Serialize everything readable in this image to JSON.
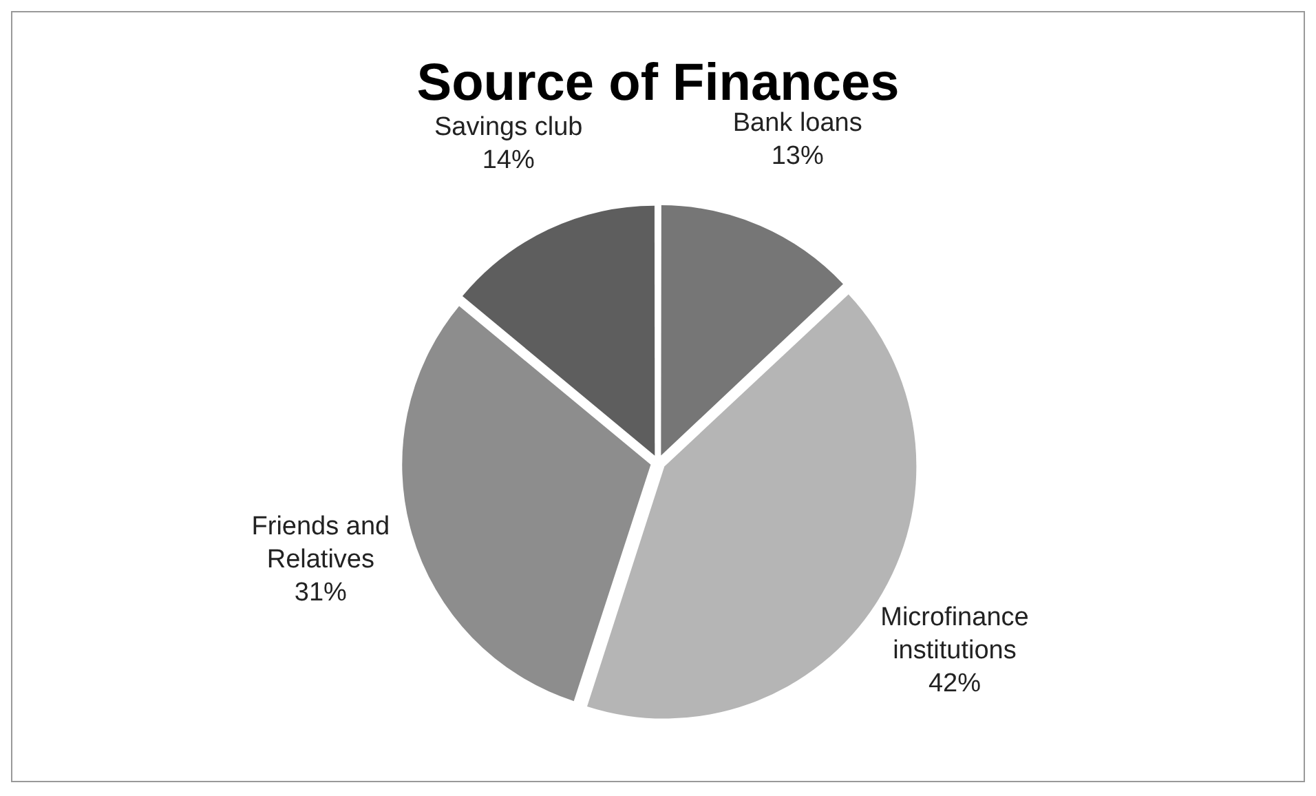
{
  "chart_data": {
    "type": "pie",
    "title": "Source of Finances",
    "categories": [
      "Bank loans",
      "Microfinance institutions",
      "Friends and Relatives",
      "Savings club"
    ],
    "values": [
      13,
      42,
      31,
      14
    ],
    "value_labels": [
      "13%",
      "42%",
      "31%",
      "14%"
    ],
    "colors": [
      "#767676",
      "#b5b5b5",
      "#8d8d8d",
      "#5e5e5e"
    ],
    "legend": false
  }
}
